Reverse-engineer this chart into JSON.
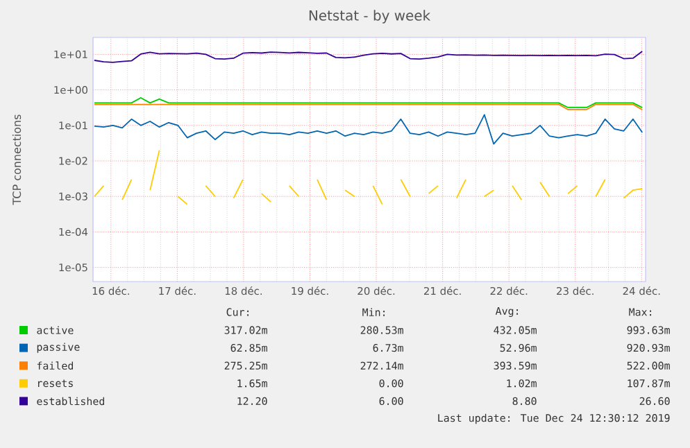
{
  "chart_data": {
    "type": "line",
    "title": "Netstat - by week",
    "ylabel": "TCP connections",
    "log": true,
    "grid": true,
    "marker": "none",
    "legend": "bottom",
    "xlim": [
      15.73,
      24.06
    ],
    "ylim": [
      4e-06,
      30
    ],
    "xticks": [
      {
        "value": 16,
        "label": "16 déc."
      },
      {
        "value": 17,
        "label": "17 déc."
      },
      {
        "value": 18,
        "label": "18 déc."
      },
      {
        "value": 19,
        "label": "19 déc."
      },
      {
        "value": 20,
        "label": "20 déc."
      },
      {
        "value": 21,
        "label": "21 déc."
      },
      {
        "value": 22,
        "label": "22 déc."
      },
      {
        "value": 23,
        "label": "23 déc."
      },
      {
        "value": 24,
        "label": "24 déc."
      }
    ],
    "yticks": [
      {
        "value": 1e-05,
        "label": "1e-05"
      },
      {
        "value": 0.0001,
        "label": "1e-04"
      },
      {
        "value": 0.001,
        "label": "1e-03"
      },
      {
        "value": 0.01,
        "label": "1e-02"
      },
      {
        "value": 0.1,
        "label": "1e-01"
      },
      {
        "value": 1,
        "label": "1e+00"
      },
      {
        "value": 10,
        "label": "1e+01"
      }
    ],
    "x": [
      15.75,
      15.89,
      16.03,
      16.17,
      16.31,
      16.45,
      16.59,
      16.73,
      16.87,
      17.01,
      17.15,
      17.29,
      17.43,
      17.57,
      17.71,
      17.85,
      17.99,
      18.13,
      18.27,
      18.41,
      18.55,
      18.69,
      18.83,
      18.97,
      19.11,
      19.25,
      19.39,
      19.53,
      19.67,
      19.81,
      19.95,
      20.09,
      20.23,
      20.37,
      20.51,
      20.65,
      20.79,
      20.93,
      21.07,
      21.21,
      21.35,
      21.49,
      21.63,
      21.77,
      21.91,
      22.05,
      22.19,
      22.33,
      22.47,
      22.61,
      22.75,
      22.89,
      23.03,
      23.17,
      23.31,
      23.45,
      23.59,
      23.73,
      23.87,
      24.01
    ],
    "series": [
      {
        "name": "active",
        "color": "#00cc00",
        "values": [
          0.43,
          0.43,
          0.43,
          0.43,
          0.43,
          0.6,
          0.43,
          0.55,
          0.43,
          0.43,
          0.43,
          0.43,
          0.43,
          0.43,
          0.43,
          0.43,
          0.43,
          0.43,
          0.43,
          0.43,
          0.43,
          0.43,
          0.43,
          0.43,
          0.43,
          0.43,
          0.43,
          0.43,
          0.43,
          0.43,
          0.43,
          0.43,
          0.43,
          0.43,
          0.43,
          0.43,
          0.43,
          0.43,
          0.43,
          0.43,
          0.43,
          0.43,
          0.43,
          0.43,
          0.43,
          0.43,
          0.43,
          0.43,
          0.43,
          0.43,
          0.43,
          0.32,
          0.32,
          0.32,
          0.43,
          0.43,
          0.43,
          0.43,
          0.43,
          0.317
        ]
      },
      {
        "name": "passive",
        "color": "#0066b3",
        "values": [
          0.095,
          0.09,
          0.1,
          0.085,
          0.15,
          0.1,
          0.13,
          0.09,
          0.12,
          0.1,
          0.045,
          0.06,
          0.07,
          0.04,
          0.065,
          0.06,
          0.07,
          0.055,
          0.065,
          0.06,
          0.06,
          0.055,
          0.065,
          0.06,
          0.07,
          0.06,
          0.07,
          0.05,
          0.06,
          0.055,
          0.065,
          0.06,
          0.07,
          0.15,
          0.06,
          0.055,
          0.065,
          0.05,
          0.065,
          0.06,
          0.055,
          0.06,
          0.2,
          0.03,
          0.06,
          0.05,
          0.055,
          0.06,
          0.1,
          0.05,
          0.045,
          0.05,
          0.055,
          0.05,
          0.06,
          0.15,
          0.08,
          0.07,
          0.15,
          0.063
        ]
      },
      {
        "name": "failed",
        "color": "#ff8000",
        "values": [
          0.39,
          0.39,
          0.39,
          0.39,
          0.39,
          0.39,
          0.39,
          0.39,
          0.39,
          0.39,
          0.39,
          0.39,
          0.39,
          0.39,
          0.39,
          0.39,
          0.39,
          0.39,
          0.39,
          0.39,
          0.39,
          0.39,
          0.39,
          0.39,
          0.39,
          0.39,
          0.39,
          0.39,
          0.39,
          0.39,
          0.39,
          0.39,
          0.39,
          0.39,
          0.39,
          0.39,
          0.39,
          0.39,
          0.39,
          0.39,
          0.39,
          0.39,
          0.39,
          0.39,
          0.39,
          0.39,
          0.39,
          0.39,
          0.39,
          0.39,
          0.39,
          0.28,
          0.28,
          0.28,
          0.39,
          0.39,
          0.39,
          0.39,
          0.39,
          0.275
        ]
      },
      {
        "name": "resets",
        "color": "#ffcc00",
        "values": [
          0.001,
          0.002,
          null,
          0.0008,
          0.003,
          null,
          0.0015,
          0.02,
          null,
          0.001,
          0.0006,
          null,
          0.002,
          0.001,
          null,
          0.0009,
          0.003,
          null,
          0.0012,
          0.0007,
          null,
          0.002,
          0.001,
          null,
          0.003,
          0.0008,
          null,
          0.0015,
          0.001,
          null,
          0.002,
          0.0006,
          null,
          0.003,
          0.001,
          null,
          0.0012,
          0.002,
          null,
          0.0009,
          0.003,
          null,
          0.001,
          0.0015,
          null,
          0.002,
          0.0008,
          null,
          0.0025,
          0.001,
          null,
          0.0012,
          0.002,
          null,
          0.001,
          0.003,
          null,
          0.0009,
          0.0015,
          0.00165
        ]
      },
      {
        "name": "established",
        "color": "#330099",
        "values": [
          6.8,
          6.2,
          6.0,
          6.3,
          6.6,
          10.2,
          11.5,
          10.4,
          10.6,
          10.5,
          10.4,
          10.8,
          10.0,
          7.6,
          7.4,
          7.8,
          10.8,
          11.2,
          10.9,
          11.6,
          11.3,
          11.0,
          11.4,
          11.1,
          10.7,
          10.9,
          8.2,
          8.0,
          8.4,
          9.5,
          10.4,
          10.7,
          10.3,
          10.6,
          7.6,
          7.4,
          7.8,
          8.5,
          10.0,
          9.6,
          9.7,
          9.5,
          9.6,
          9.4,
          9.5,
          9.4,
          9.3,
          9.4,
          9.3,
          9.4,
          9.3,
          9.4,
          9.3,
          9.4,
          9.2,
          10.1,
          9.9,
          7.6,
          7.8,
          12.2
        ]
      }
    ],
    "annotations": [
      "Cur:",
      "Min:",
      "Avg:",
      "Max:",
      "317.02m",
      "280.53m",
      "432.05m",
      "993.63m",
      "62.85m",
      "6.73m",
      "52.96m",
      "920.93m",
      "275.25m",
      "272.14m",
      "393.59m",
      "522.00m",
      "1.65m",
      "0.00",
      "1.02m",
      "107.87m",
      "12.20",
      "6.00",
      "8.80",
      "26.60",
      "Last update: Tue Dec 24 12:30:12 2019"
    ]
  }
}
